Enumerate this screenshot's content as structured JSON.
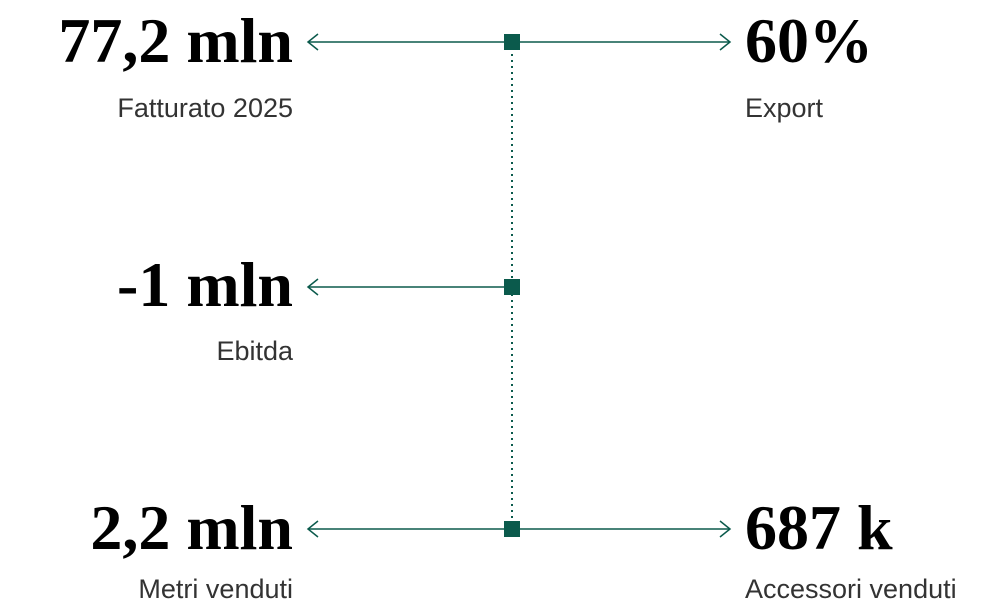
{
  "left": [
    {
      "value": "77,2 mln",
      "label": "Fatturato 2025"
    },
    {
      "value": "-1 mln",
      "label": "Ebitda"
    },
    {
      "value": "2,2 mln",
      "label": "Metri venduti"
    }
  ],
  "right": [
    {
      "value": "60%",
      "label": "Export"
    },
    {
      "value": "687 k",
      "label": "Accessori venduti"
    }
  ]
}
